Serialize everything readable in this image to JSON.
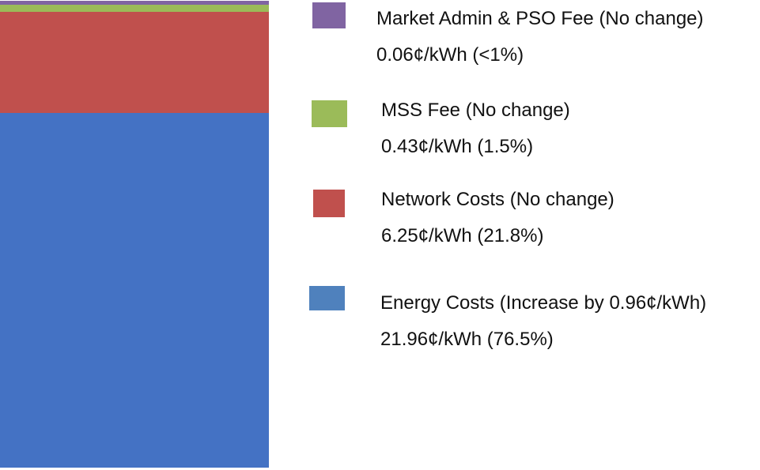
{
  "chart_data": {
    "type": "stacked-bar",
    "categories": [
      ""
    ],
    "unit": "¢/kWh",
    "series": [
      {
        "name": "Energy Costs (Increase by 0.96¢/kWh)",
        "value": 21.96,
        "value_label": "21.96¢/kWh (76.5%)",
        "color": "#4472c4",
        "legend_color": "#4f81bd"
      },
      {
        "name": "Network Costs (No change)",
        "value": 6.25,
        "value_label": "6.25¢/kWh (21.8%)",
        "color": "#c0504d",
        "legend_color": "#c0504d"
      },
      {
        "name": "MSS Fee (No change)",
        "value": 0.43,
        "value_label": "0.43¢/kWh (1.5%)",
        "color": "#9bbb59",
        "legend_color": "#9bbb59"
      },
      {
        "name": "Market Admin & PSO Fee (No change)",
        "value": 0.06,
        "value_label": "0.06¢/kWh (<1%)",
        "color": "#8064a2",
        "legend_color": "#8064a2"
      }
    ],
    "legend": "right",
    "grid": false
  }
}
